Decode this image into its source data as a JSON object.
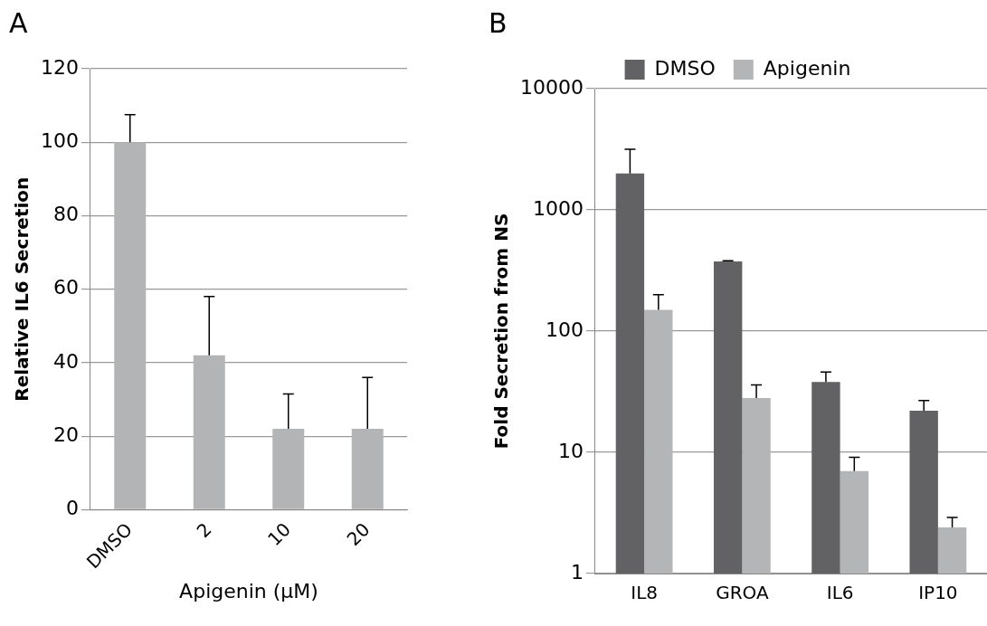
{
  "chart_data": [
    {
      "type": "bar",
      "title": "A",
      "xlabel": "Apigenin (μM)",
      "ylabel": "Relative IL6 Secretion",
      "categories": [
        "DMSO",
        "2",
        "10",
        "20"
      ],
      "values": [
        100,
        42,
        22,
        22
      ],
      "color": "#b3b4b6",
      "errors": [
        [
          100,
          107.5
        ],
        [
          42,
          58
        ],
        [
          22,
          31.5
        ],
        [
          22,
          36
        ]
      ],
      "ylim": [
        0,
        120
      ],
      "yticks": [
        0,
        20,
        40,
        60,
        80,
        100,
        120
      ],
      "grid": "y"
    },
    {
      "type": "bar",
      "title": "B",
      "ylabel": "Fold Secretion from NS",
      "categories": [
        "IL8",
        "GROA",
        "IL6",
        "IP10"
      ],
      "log": true,
      "ylim": [
        1,
        10000
      ],
      "yticks": [
        1,
        10,
        100,
        1000,
        10000
      ],
      "grid": "y",
      "legend": "top",
      "series": [
        {
          "name": "DMSO",
          "color": "#626264",
          "values": [
            2000,
            375,
            38,
            22
          ],
          "errors": [
            [
              2000,
              3160
            ],
            [
              375,
              380
            ],
            [
              38,
              46
            ],
            [
              22,
              26.7
            ]
          ]
        },
        {
          "name": "Apigenin",
          "color": "#b4b5b7",
          "values": [
            150,
            28,
            7,
            2.4
          ],
          "errors": [
            [
              150,
              200
            ],
            [
              28,
              36
            ],
            [
              7,
              9.1
            ],
            [
              2.4,
              2.9
            ]
          ]
        }
      ]
    }
  ]
}
